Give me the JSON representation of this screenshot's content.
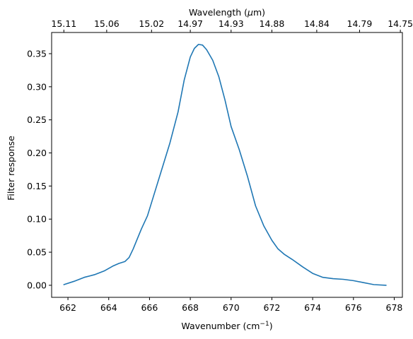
{
  "chart_data": {
    "type": "line",
    "xlabel": "Wavenumber (cm",
    "xlabel_sup": "−1",
    "xlabel_end": ")",
    "ylabel": "Filter response",
    "top_xlabel_prefix": "Wavelength (",
    "top_xlabel_mu": "μ",
    "top_xlabel_suffix": "m)",
    "xlim": [
      661.2,
      678.4
    ],
    "ylim": [
      -0.0182,
      0.382
    ],
    "x_ticks": [
      662,
      664,
      666,
      668,
      670,
      672,
      674,
      676,
      678
    ],
    "x_tick_labels": [
      "662",
      "664",
      "666",
      "668",
      "670",
      "672",
      "674",
      "676",
      "678"
    ],
    "y_ticks": [
      0.0,
      0.05,
      0.1,
      0.15,
      0.2,
      0.25,
      0.3,
      0.35
    ],
    "y_tick_labels": [
      "0.00",
      "0.05",
      "0.10",
      "0.15",
      "0.20",
      "0.25",
      "0.30",
      "0.35"
    ],
    "top_ticks": [
      661.8,
      663.9,
      666.1,
      668.0,
      670.0,
      672.0,
      674.2,
      676.3,
      678.3
    ],
    "top_tick_labels": [
      "15.11",
      "15.06",
      "15.02",
      "14.97",
      "14.93",
      "14.88",
      "14.84",
      "14.79",
      "14.75"
    ],
    "line_color": "#1f77b4",
    "grid": false,
    "series": [
      {
        "x": [
          661.8,
          662.3,
          662.8,
          663.3,
          663.8,
          664.2,
          664.5,
          664.8,
          665.0,
          665.2,
          665.4,
          665.6,
          665.9,
          666.2,
          666.6,
          667.0,
          667.4,
          667.7,
          668.0,
          668.2,
          668.4,
          668.6,
          668.8,
          669.1,
          669.4,
          669.7,
          670.0,
          670.4,
          670.8,
          671.2,
          671.6,
          672.0,
          672.3,
          672.6,
          673.0,
          673.5,
          674.0,
          674.5,
          675.0,
          675.5,
          676.0,
          676.5,
          677.0,
          677.6
        ],
        "y": [
          0.001,
          0.006,
          0.012,
          0.016,
          0.022,
          0.029,
          0.033,
          0.036,
          0.042,
          0.055,
          0.07,
          0.085,
          0.105,
          0.135,
          0.175,
          0.215,
          0.262,
          0.31,
          0.345,
          0.358,
          0.364,
          0.363,
          0.356,
          0.34,
          0.315,
          0.28,
          0.24,
          0.205,
          0.165,
          0.12,
          0.09,
          0.068,
          0.055,
          0.047,
          0.039,
          0.028,
          0.018,
          0.012,
          0.01,
          0.009,
          0.007,
          0.004,
          0.001,
          0.0
        ]
      }
    ]
  }
}
